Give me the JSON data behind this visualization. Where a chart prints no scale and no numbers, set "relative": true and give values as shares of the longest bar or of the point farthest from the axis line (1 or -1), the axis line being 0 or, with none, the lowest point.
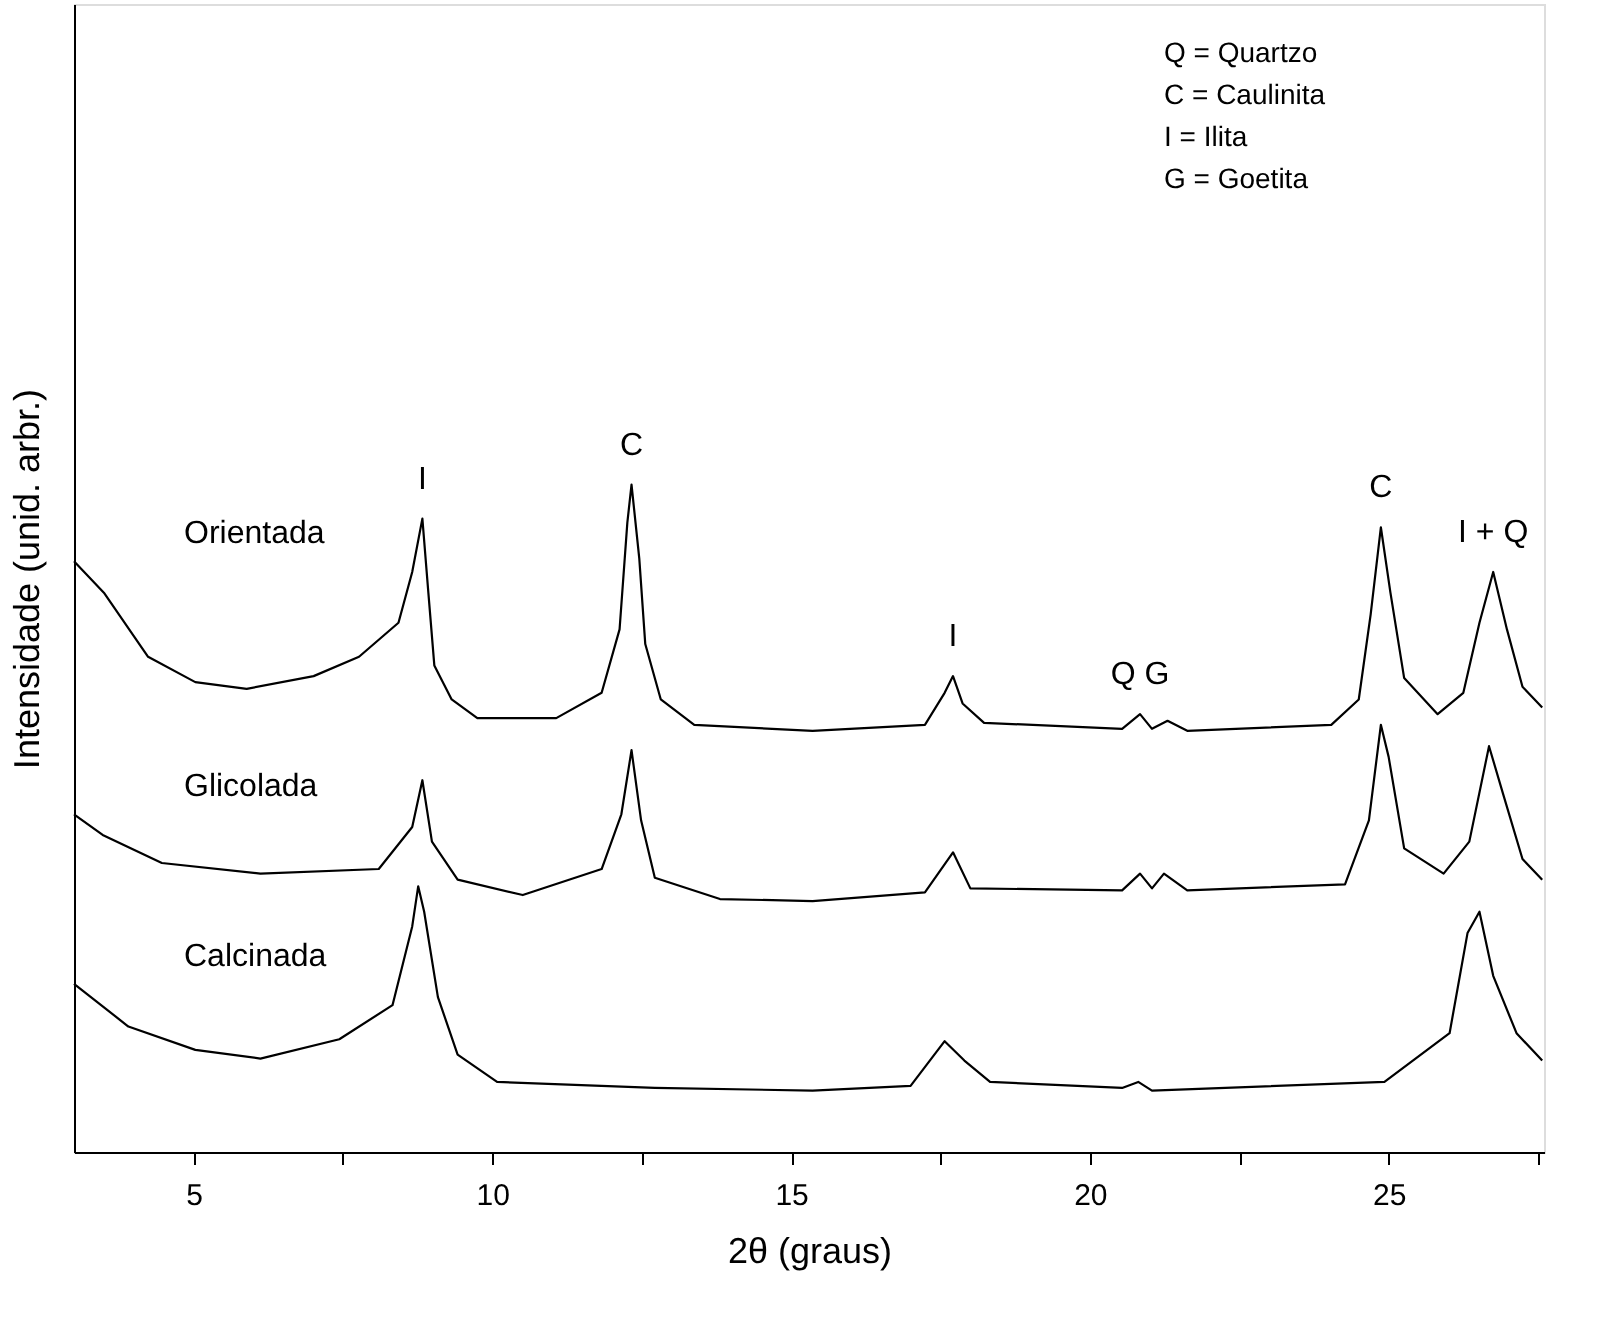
{
  "chart_data": {
    "type": "line",
    "relative": true,
    "xlabel": "2θ (graus)",
    "ylabel": "Intensidade (unid. arbr.)",
    "xlim": [
      3,
      27.6
    ],
    "xticks": [
      5,
      {
        "value": 7.5,
        "label": null
      },
      10,
      {
        "value": 12.5,
        "label": null
      },
      15,
      {
        "value": 17.5,
        "label": null
      },
      20,
      {
        "value": 22.5,
        "label": null
      },
      25,
      {
        "value": 27.5,
        "label": null
      }
    ],
    "grid": false,
    "legend": false,
    "marker": "none",
    "line_style": "solid",
    "series": [
      {
        "name": "Orientada",
        "color": "#000000",
        "x": [
          3.0,
          3.5,
          4.24,
          5.03,
          5.89,
          7.01,
          7.77,
          8.43,
          8.66,
          8.83,
          8.93,
          9.03,
          9.32,
          9.75,
          11.07,
          11.83,
          12.13,
          12.26,
          12.33,
          12.46,
          12.56,
          12.82,
          13.38,
          15.36,
          17.24,
          17.57,
          17.71,
          17.87,
          18.23,
          20.54,
          20.84,
          21.04,
          21.3,
          21.63,
          24.04,
          24.5,
          24.7,
          24.87,
          25.03,
          25.26,
          25.82,
          26.25,
          26.52,
          26.75,
          26.98,
          27.24,
          27.57
        ],
        "values": [
          0.885,
          0.838,
          0.742,
          0.704,
          0.694,
          0.713,
          0.742,
          0.793,
          0.869,
          0.949,
          0.838,
          0.729,
          0.678,
          0.65,
          0.65,
          0.688,
          0.783,
          0.943,
          1.0,
          0.889,
          0.761,
          0.678,
          0.64,
          0.631,
          0.64,
          0.688,
          0.713,
          0.672,
          0.643,
          0.634,
          0.656,
          0.634,
          0.646,
          0.631,
          0.64,
          0.678,
          0.806,
          0.936,
          0.838,
          0.71,
          0.656,
          0.688,
          0.793,
          0.869,
          0.783,
          0.697,
          0.666
        ]
      },
      {
        "name": "Glicolada",
        "color": "#000000",
        "x": [
          3.0,
          3.48,
          4.47,
          6.12,
          8.1,
          8.66,
          8.83,
          8.99,
          9.42,
          10.51,
          11.83,
          12.16,
          12.33,
          12.49,
          12.72,
          13.81,
          15.36,
          17.24,
          17.71,
          18.0,
          20.54,
          20.84,
          21.04,
          21.24,
          21.63,
          24.27,
          24.67,
          24.87,
          25.0,
          25.26,
          25.92,
          26.35,
          26.68,
          26.91,
          27.24,
          27.57
        ],
        "values": [
          0.506,
          0.475,
          0.433,
          0.417,
          0.424,
          0.487,
          0.557,
          0.465,
          0.408,
          0.385,
          0.424,
          0.506,
          0.602,
          0.497,
          0.411,
          0.379,
          0.376,
          0.389,
          0.449,
          0.395,
          0.392,
          0.417,
          0.395,
          0.417,
          0.392,
          0.401,
          0.497,
          0.64,
          0.592,
          0.455,
          0.417,
          0.465,
          0.608,
          0.538,
          0.439,
          0.408
        ]
      },
      {
        "name": "Calcinada",
        "color": "#000000",
        "x": [
          3.0,
          3.91,
          5.03,
          6.12,
          7.44,
          8.33,
          8.66,
          8.76,
          8.86,
          9.09,
          9.42,
          10.08,
          12.72,
          15.36,
          17.0,
          17.57,
          17.9,
          18.33,
          20.54,
          20.81,
          21.04,
          24.93,
          26.02,
          26.32,
          26.52,
          26.75,
          27.14,
          27.57
        ],
        "values": [
          0.252,
          0.188,
          0.153,
          0.14,
          0.169,
          0.22,
          0.338,
          0.398,
          0.36,
          0.232,
          0.146,
          0.105,
          0.096,
          0.092,
          0.099,
          0.166,
          0.137,
          0.105,
          0.096,
          0.105,
          0.092,
          0.105,
          0.178,
          0.328,
          0.36,
          0.264,
          0.178,
          0.137
        ]
      }
    ],
    "annotations": [
      {
        "text": "I",
        "x": 8.83,
        "y": 0.949
      },
      {
        "text": "C",
        "x": 12.33,
        "y": 1.0
      },
      {
        "text": "I",
        "x": 17.71,
        "y": 0.713
      },
      {
        "text": "Q G",
        "x": 20.84,
        "y": 0.656
      },
      {
        "text": "C",
        "x": 24.87,
        "y": 0.936
      },
      {
        "text": "I + Q",
        "x": 26.75,
        "y": 0.869
      },
      "Q = Quartzo",
      "C = Caulinita",
      "I = Ilita",
      "G = Goetita"
    ]
  }
}
